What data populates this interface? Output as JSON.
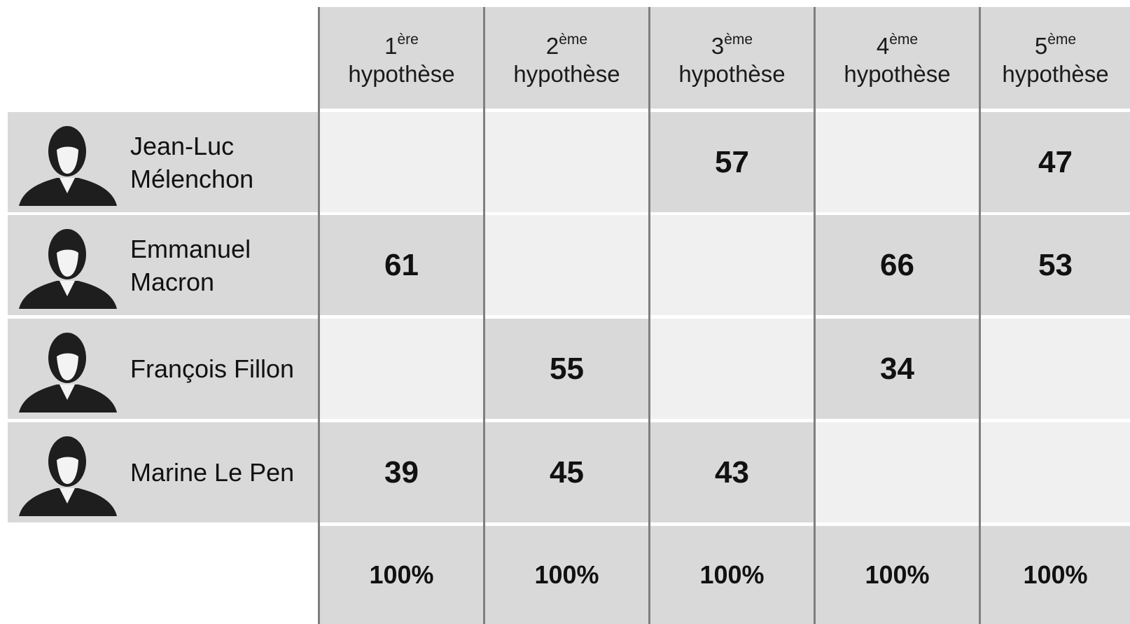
{
  "table": {
    "columns": [
      {
        "number": "1",
        "suffix": "ère",
        "word": "hypothèse"
      },
      {
        "number": "2",
        "suffix": "ème",
        "word": "hypothèse"
      },
      {
        "number": "3",
        "suffix": "ème",
        "word": "hypothèse"
      },
      {
        "number": "4",
        "suffix": "ème",
        "word": "hypothèse"
      },
      {
        "number": "5",
        "suffix": "ème",
        "word": "hypothèse"
      }
    ],
    "rows": [
      {
        "name": "Jean-Luc Mélenchon",
        "values": [
          null,
          null,
          57,
          null,
          47
        ]
      },
      {
        "name": "Emmanuel Macron",
        "values": [
          61,
          null,
          null,
          66,
          53
        ]
      },
      {
        "name": "François Fillon",
        "values": [
          null,
          55,
          null,
          34,
          null
        ]
      },
      {
        "name": "Marine Le Pen",
        "values": [
          39,
          45,
          43,
          null,
          null
        ]
      }
    ],
    "totals": [
      "100%",
      "100%",
      "100%",
      "100%",
      "100%"
    ]
  }
}
